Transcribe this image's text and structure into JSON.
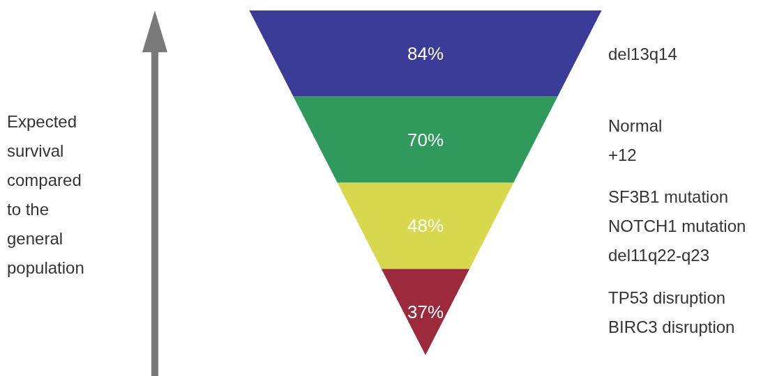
{
  "chart_data": {
    "type": "other",
    "ylabel": "Expected\nsurvival\ncompared\nto the\ngeneral\npopulation",
    "categories": [
      "del13q14",
      "Normal\n+12",
      "SF3B1 mutation\nNOTCH1 mutation\ndel11q22-q23",
      "TP53 disruption\nBIRC3 disruption"
    ],
    "values": [
      84,
      70,
      48,
      37
    ],
    "value_labels": [
      "84%",
      "70%",
      "48%",
      "37%"
    ],
    "colors": [
      "#3b3c97",
      "#2f9a5c",
      "#d8d84e",
      "#9c2a3c"
    ]
  }
}
